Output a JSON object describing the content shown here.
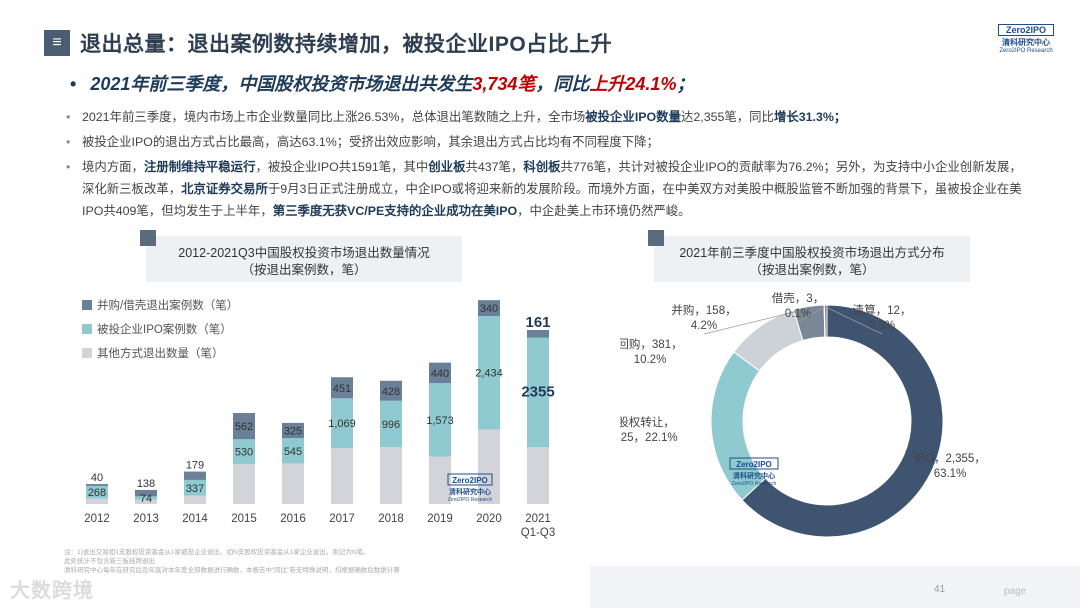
{
  "header": {
    "menu_icon": "≡",
    "title": "退出总量：退出案例数持续增加，被投企业IPO占比上升",
    "logo_line1": "Zero2IPO",
    "logo_line2": "清科研究中心",
    "logo_line3": "Zero2IPO Research"
  },
  "headline": {
    "bullet": "•",
    "part1": "2021年前三季度，中国股权投资市场退出共发生",
    "red1": "3,734笔",
    "part2": "，同比",
    "red2": "上升24.1%",
    "part3": "；"
  },
  "bullets": {
    "b1_a": "2021年前三季度，境内市场上市企业数量同比上涨26.53%，总体退出笔数随之上升，全市场",
    "b1_b": "被投企业IPO数量",
    "b1_c": "达2,355笔，同比",
    "b1_d": "增长31.3%",
    "b1_e": "；",
    "b2": "被投企业IPO的退出方式占比最高，高达63.1%；受挤出效应影响，其余退出方式占比均有不同程度下降；",
    "b3_a": "境内方面，",
    "b3_b": "注册制维持平稳运行",
    "b3_c": "，被投企业IPO共1591笔，其中",
    "b3_d": "创业板",
    "b3_e": "共437笔，",
    "b3_f": "科创板",
    "b3_g": "共776笔，共计对被投企业IPO的贡献率为76.2%；另外，为支持中小企业创新发展，深化新三板改革，",
    "b3_h": "北京证券交易所",
    "b3_i": "于9月3日正式注册成立，中企IPO或将迎来新的发展阶段。而境外方面，在中美双方对美股中概股监管不断加强的背景下，虽被投企业在美IPO共409笔，但均发生于上半年，",
    "b3_j": "第三季度无获VC/PE支持的企业成功在美IPO",
    "b3_k": "，中企赴美上市环境仍然严峻。"
  },
  "chart_data": [
    {
      "type": "bar",
      "title": "2012-2021Q3中国股权投资市场退出数量情况",
      "subtitle": "（按退出案例数，笔）",
      "categories": [
        "2012",
        "2013",
        "2014",
        "2015",
        "2016",
        "2017",
        "2018",
        "2019",
        "2020",
        "2021 Q1-Q3"
      ],
      "category_line1": [
        "2012",
        "2013",
        "2014",
        "2015",
        "2016",
        "2017",
        "2018",
        "2019",
        "2020",
        "2021"
      ],
      "category_line2": [
        "",
        "",
        "",
        "",
        "",
        "",
        "",
        "",
        "",
        "Q1-Q3"
      ],
      "stacked": true,
      "series": [
        {
          "name": "其他方式退出数量（笔）",
          "color": "#d3d3da",
          "values": [
            120,
            90,
            180,
            860,
            870,
            1200,
            1220,
            1020,
            1600,
            1218
          ]
        },
        {
          "name": "被投企业IPO案例数（笔）",
          "color": "#8fcad0",
          "values": [
            268,
            74,
            337,
            530,
            545,
            1069,
            996,
            1573,
            2434,
            2355
          ]
        },
        {
          "name": "并购/借壳退出案例数（笔）",
          "color": "#6a7f98",
          "values": [
            40,
            138,
            179,
            562,
            325,
            451,
            428,
            440,
            340,
            161
          ]
        }
      ],
      "value_labels_ipo": [
        "268",
        "74",
        "337",
        "530",
        "545",
        "1,069",
        "996",
        "1,573",
        "2,434",
        "2355"
      ],
      "value_labels_ma": [
        "40",
        "138",
        "179",
        "562",
        "325",
        "451",
        "428",
        "440",
        "340",
        "161"
      ],
      "legend": [
        "并购/借壳退出案例数（笔）",
        "被投企业IPO案例数（笔）",
        "其他方式退出数量（笔）"
      ],
      "legend_placement": "top-left",
      "watermark_line1": "Zero2IPO",
      "watermark_line2": "清科研究中心",
      "watermark_line3": "Zero2IPO Research"
    },
    {
      "type": "pie",
      "donut": true,
      "title": "2021年前三季度中国股权投资市场退出方式分布",
      "subtitle": "（按退出案例数，笔）",
      "slices": [
        {
          "name": "IPO",
          "value": 2355,
          "percent": 63.1,
          "color": "#3e5470",
          "label_line1": "IPO，2,355，",
          "label_line2": "63.1%"
        },
        {
          "name": "股权转让",
          "value": 825,
          "percent": 22.1,
          "color": "#8fcad0",
          "label_line1": "股权转让，",
          "label_line2": "825，22.1%"
        },
        {
          "name": "回购",
          "value": 381,
          "percent": 10.2,
          "color": "#cdd1d8",
          "label_line1": "回购，381，",
          "label_line2": "10.2%"
        },
        {
          "name": "并购",
          "value": 158,
          "percent": 4.2,
          "color": "#7a8796",
          "label_line1": "并购，158，",
          "label_line2": "4.2%"
        },
        {
          "name": "借壳",
          "value": 3,
          "percent": 0.1,
          "color": "#a7b0bb",
          "label_line1": "借壳，3，",
          "label_line2": "0.1%"
        },
        {
          "name": "清算",
          "value": 12,
          "percent": 0.3,
          "color": "#5a6b7d",
          "label_line1": "清算，12，",
          "label_line2": "0.3%"
        }
      ],
      "watermark_line1": "Zero2IPO",
      "watermark_line2": "清科研究中心",
      "watermark_line3": "Zero2IPO Research"
    }
  ],
  "footnote": {
    "line1": "注：1)退出交易如1支股权投资基金从1家被投企业退出，如N支股权投资基金从1家企业退出，则记为N笔。",
    "line2": "此处统计不包含新三板挂牌退出",
    "line3": "清科研究中心每年在研究后及年底对本年度全部数据进行确数，本报告中“同比”若无特殊说明，均根据确数后数据计算"
  },
  "footer": {
    "watermark": "大数跨境",
    "page_number": "41",
    "page_word": "page"
  }
}
